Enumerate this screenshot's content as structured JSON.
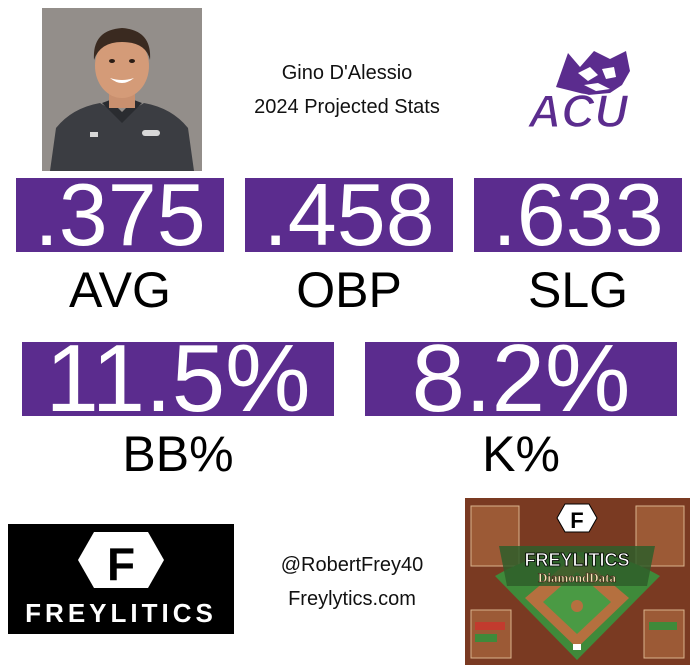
{
  "header": {
    "player_name": "Gino D'Alessio",
    "subtitle": "2024 Projected Stats"
  },
  "team_logo": {
    "text": "ACU",
    "color": "#5b2c8e"
  },
  "stats_row1": [
    {
      "value": ".375",
      "label": "AVG"
    },
    {
      "value": ".458",
      "label": "OBP"
    },
    {
      "value": ".633",
      "label": "SLG"
    }
  ],
  "stats_row2": [
    {
      "value": "11.5%",
      "label": "BB%"
    },
    {
      "value": "8.2%",
      "label": "K%"
    }
  ],
  "footer": {
    "brand": "FREYLITICS",
    "brand_letter": "F",
    "handle": "@RobertFrey40",
    "website": "Freylytics.com",
    "diamond_title": "FREYLITICS",
    "diamond_subtitle": "DiamondData"
  },
  "colors": {
    "accent": "#5b2c8e",
    "field_green": "#3f8a3a",
    "dirt": "#b5703f"
  }
}
